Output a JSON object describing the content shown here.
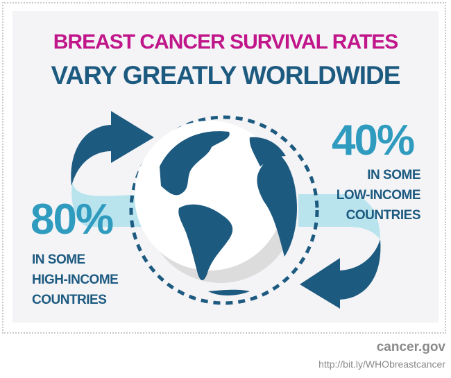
{
  "title": {
    "line1": "BREAST CANCER SURVIVAL RATES",
    "line2": "VARY GREATLY WORLDWIDE"
  },
  "high_income": {
    "value": "80%",
    "caption": [
      "IN SOME",
      "HIGH-INCOME",
      "COUNTRIES"
    ]
  },
  "low_income": {
    "value": "40%",
    "caption": [
      "IN SOME",
      "LOW-INCOME",
      "COUNTRIES"
    ]
  },
  "footer": {
    "site": "cancer.gov",
    "link": "http://bit.ly/WHObreastcancer"
  },
  "colors": {
    "title_pink": "#c0168a",
    "navy": "#1d5a80",
    "accent": "#2f9bbf",
    "band": "#b9e4ee",
    "panel": "#f4f4f7"
  },
  "icons": [
    "globe-icon",
    "curved-arrow-icon"
  ]
}
